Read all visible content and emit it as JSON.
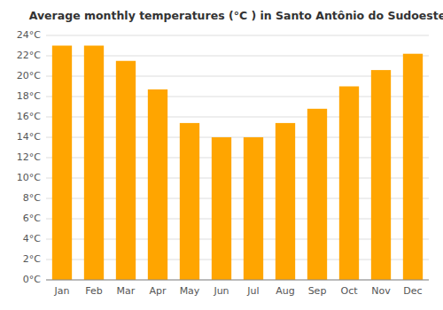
{
  "chart_data": {
    "type": "bar",
    "title": "Average monthly temperatures (°C ) in Santo Antônio do Sudoeste",
    "categories": [
      "Jan",
      "Feb",
      "Mar",
      "Apr",
      "May",
      "Jun",
      "Jul",
      "Aug",
      "Sep",
      "Oct",
      "Nov",
      "Dec"
    ],
    "values": [
      23.0,
      23.0,
      21.5,
      18.7,
      15.4,
      14.0,
      14.0,
      15.4,
      16.8,
      19.0,
      20.6,
      22.2
    ],
    "color": "#FFA500",
    "ylim": [
      0,
      24
    ],
    "yticks": [
      {
        "value": 0,
        "label": "0°C"
      },
      {
        "value": 2,
        "label": "2°C"
      },
      {
        "value": 4,
        "label": "4°C"
      },
      {
        "value": 6,
        "label": "6°C"
      },
      {
        "value": 8,
        "label": "8°C"
      },
      {
        "value": 10,
        "label": "10°C"
      },
      {
        "value": 12,
        "label": "12°C"
      },
      {
        "value": 14,
        "label": "14°C"
      },
      {
        "value": 16,
        "label": "16°C"
      },
      {
        "value": 18,
        "label": "18°C"
      },
      {
        "value": 20,
        "label": "20°C"
      },
      {
        "value": 22,
        "label": "22°C"
      },
      {
        "value": 24,
        "label": "24°C"
      }
    ],
    "grid": true
  }
}
